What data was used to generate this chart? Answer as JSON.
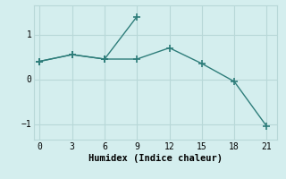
{
  "line1_x": [
    0,
    3,
    6,
    9
  ],
  "line1_y": [
    0.4,
    0.55,
    0.45,
    1.4
  ],
  "line2_x": [
    0,
    3,
    6,
    9,
    12,
    15,
    18,
    21
  ],
  "line2_y": [
    0.4,
    0.55,
    0.45,
    0.45,
    0.7,
    0.35,
    -0.05,
    -1.05
  ],
  "color": "#2e7d7a",
  "bg_color": "#d4eeee",
  "xlabel": "Humidex (Indice chaleur)",
  "xlim": [
    -0.5,
    22
  ],
  "ylim": [
    -1.35,
    1.65
  ],
  "xticks": [
    0,
    3,
    6,
    9,
    12,
    15,
    18,
    21
  ],
  "yticks": [
    -1,
    0,
    1
  ],
  "grid_color": "#b8d8d8",
  "marker": "+"
}
